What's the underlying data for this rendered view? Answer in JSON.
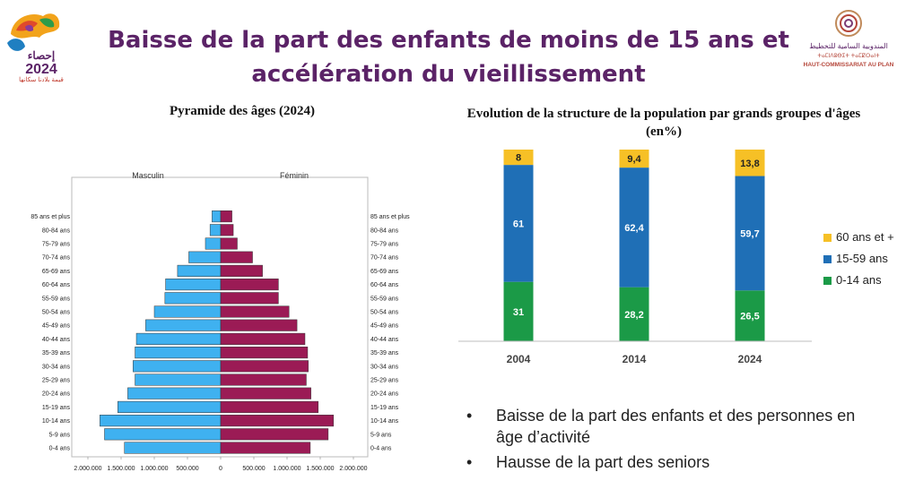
{
  "header": {
    "title": "Baisse de la part des enfants de moins de 15 ans et accélération du vieillissement",
    "logo_left": "RGPH 2024",
    "logo_right": "HAUT-COMMISSARIAT AU PLAN"
  },
  "bullets": [
    "Baisse de la part des enfants et des personnes en âge d’activité",
    "Hausse de la part des seniors"
  ],
  "chart_data": [
    {
      "type": "bar",
      "title": "Pyramide des âges (2024)",
      "orientation": "horizontal",
      "left_label": "Masculin",
      "right_label": "Féminin",
      "categories": [
        "0-4 ans",
        "5-9 ans",
        "10-14 ans",
        "15-19 ans",
        "20-24 ans",
        "25-29 ans",
        "30-34 ans",
        "35-39 ans",
        "40-44 ans",
        "45-49 ans",
        "50-54 ans",
        "55-59 ans",
        "60-64 ans",
        "65-69 ans",
        "70-74 ans",
        "75-79 ans",
        "80-84 ans",
        "85 ans et plus"
      ],
      "series": [
        {
          "name": "Masculin",
          "color": "#3fb1f0",
          "values": [
            1450000,
            1750000,
            1820000,
            1550000,
            1400000,
            1290000,
            1320000,
            1290000,
            1270000,
            1130000,
            1000000,
            840000,
            830000,
            650000,
            480000,
            230000,
            160000,
            130000
          ]
        },
        {
          "name": "Féminin",
          "color": "#9b1b55",
          "values": [
            1350000,
            1620000,
            1700000,
            1470000,
            1360000,
            1290000,
            1320000,
            1310000,
            1270000,
            1150000,
            1030000,
            870000,
            870000,
            630000,
            480000,
            250000,
            190000,
            170000
          ]
        }
      ],
      "xticks": [
        "2.000.000",
        "1.500.000",
        "1.000.000",
        "500.000",
        "0",
        "500.000",
        "1.000.000",
        "1.500.000",
        "2.000.000"
      ],
      "xlim": [
        -2000000,
        2000000
      ]
    },
    {
      "type": "bar",
      "stacked": true,
      "title": "Evolution de la structure de la population par grands groupes d'âges (en%)",
      "categories": [
        "2004",
        "2014",
        "2024"
      ],
      "series": [
        {
          "name": "0-14 ans",
          "color": "#1b9a47",
          "values": [
            31,
            28.2,
            26.5
          ],
          "labels": [
            "31",
            "28,2",
            "26,5"
          ]
        },
        {
          "name": "15-59 ans",
          "color": "#1f6fb6",
          "values": [
            61,
            62.4,
            59.7
          ],
          "labels": [
            "61",
            "62,4",
            "59,7"
          ]
        },
        {
          "name": "60 ans et +",
          "color": "#f6c026",
          "values": [
            8,
            9.4,
            13.8
          ],
          "labels": [
            "8",
            "9,4",
            "13,8"
          ]
        }
      ],
      "ylim": [
        0,
        100
      ],
      "legend_position": "right"
    }
  ]
}
